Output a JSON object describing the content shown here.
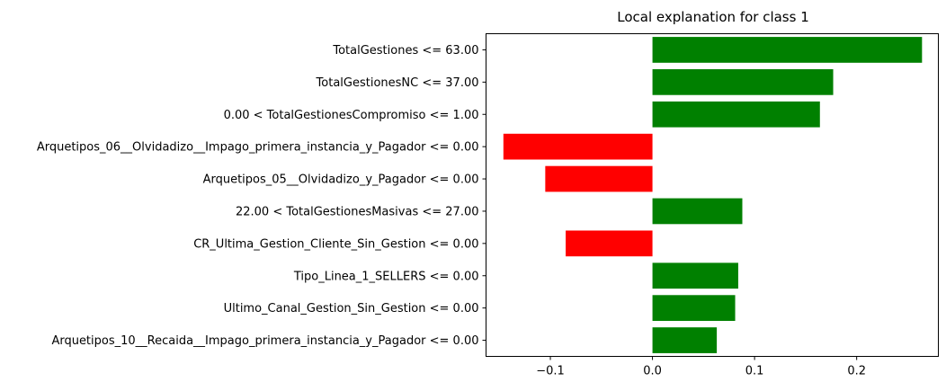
{
  "chart_data": {
    "type": "bar",
    "orientation": "horizontal",
    "title": "Local explanation for class 1",
    "xlabel": "",
    "ylabel": "",
    "xlim": [
      -0.163,
      0.28
    ],
    "grid": false,
    "legend": "none",
    "positive_color": "#008000",
    "negative_color": "#ff0000",
    "xticks": [
      -0.1,
      0.0,
      0.1,
      0.2
    ],
    "xtick_labels": [
      "−0.1",
      "0.0",
      "0.1",
      "0.2"
    ],
    "categories": [
      "TotalGestiones <= 63.00",
      "TotalGestionesNC <= 37.00",
      "0.00 < TotalGestionesCompromiso <= 1.00",
      "Arquetipos_06__Olvidadizo__Impago_primera_instancia_y_Pagador <= 0.00",
      "Arquetipos_05__Olvidadizo_y_Pagador <= 0.00",
      "22.00 < TotalGestionesMasivas <= 27.00",
      "CR_Ultima_Gestion_Cliente_Sin_Gestion <= 0.00",
      "Tipo_Linea_1_SELLERS <= 0.00",
      "Ultimo_Canal_Gestion_Sin_Gestion <= 0.00",
      "Arquetipos_10__Recaida__Impago_primera_instancia_y_Pagador <= 0.00"
    ],
    "values": [
      0.264,
      0.177,
      0.164,
      -0.146,
      -0.105,
      0.088,
      -0.085,
      0.084,
      0.081,
      0.063
    ]
  }
}
